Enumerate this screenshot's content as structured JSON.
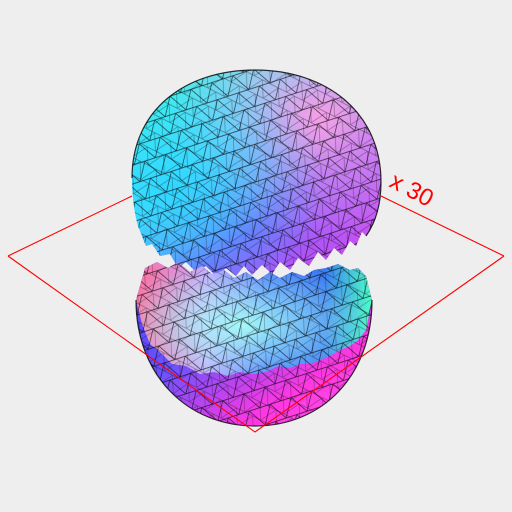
{
  "viewport": {
    "background": "#eeeeee",
    "axis_label": "x 30",
    "plane_color": "#ff0000",
    "mesh_line_color": "#000000",
    "shading_colors": [
      "#40ffd0",
      "#40b0ff",
      "#7050ff",
      "#ff40e0",
      "#ff8090",
      "#3040ff",
      "#50ffc0"
    ]
  }
}
